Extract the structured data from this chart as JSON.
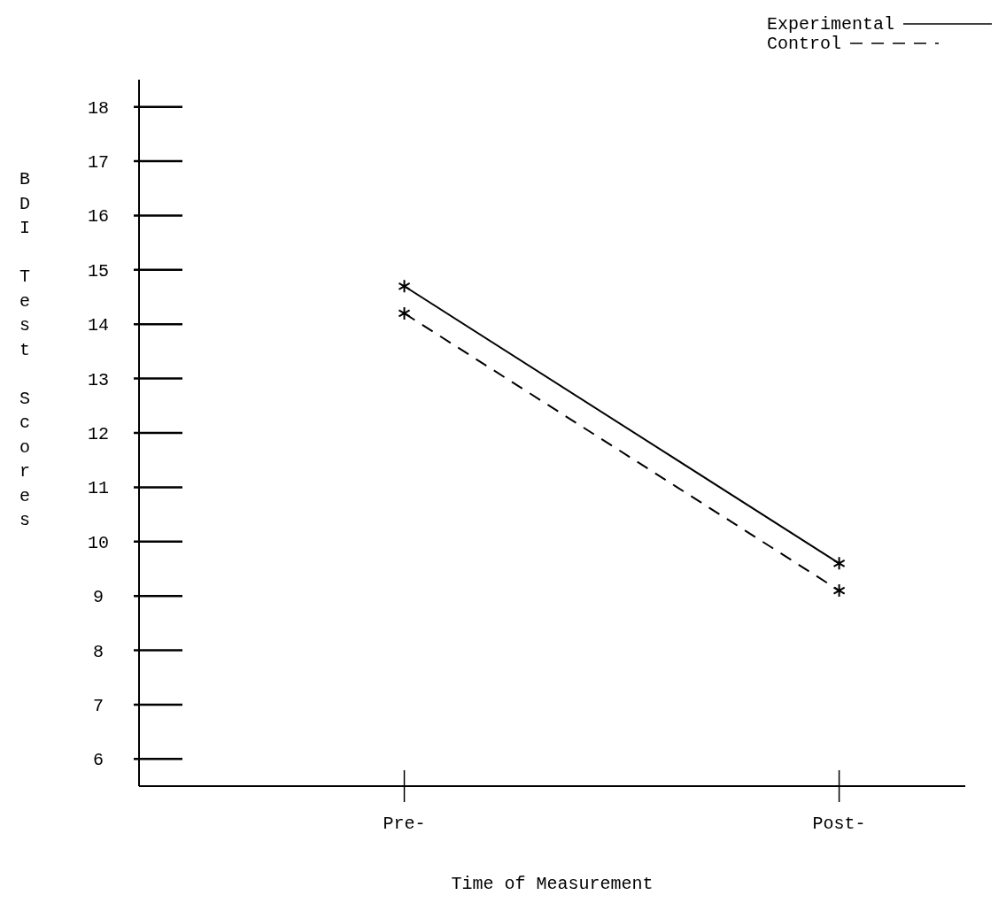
{
  "chart_data": {
    "type": "line",
    "xlabel": "Time of Measurement",
    "ylabel": "BDI Test Scores",
    "categories": [
      "Pre-",
      "Post-"
    ],
    "series": [
      {
        "name": "Experimental",
        "color": "#000000",
        "values": [
          14.7,
          9.6
        ],
        "line_style": "solid"
      },
      {
        "name": "Control",
        "color": "#000000",
        "values": [
          14.2,
          9.1
        ],
        "line_style": "dashed"
      }
    ],
    "ylim": [
      5.5,
      18.5
    ],
    "yticks": [
      6,
      7,
      8,
      9,
      10,
      11,
      12,
      13,
      14,
      15,
      16,
      17,
      18
    ],
    "grid": false,
    "legend": "top right",
    "marker": "cross"
  }
}
